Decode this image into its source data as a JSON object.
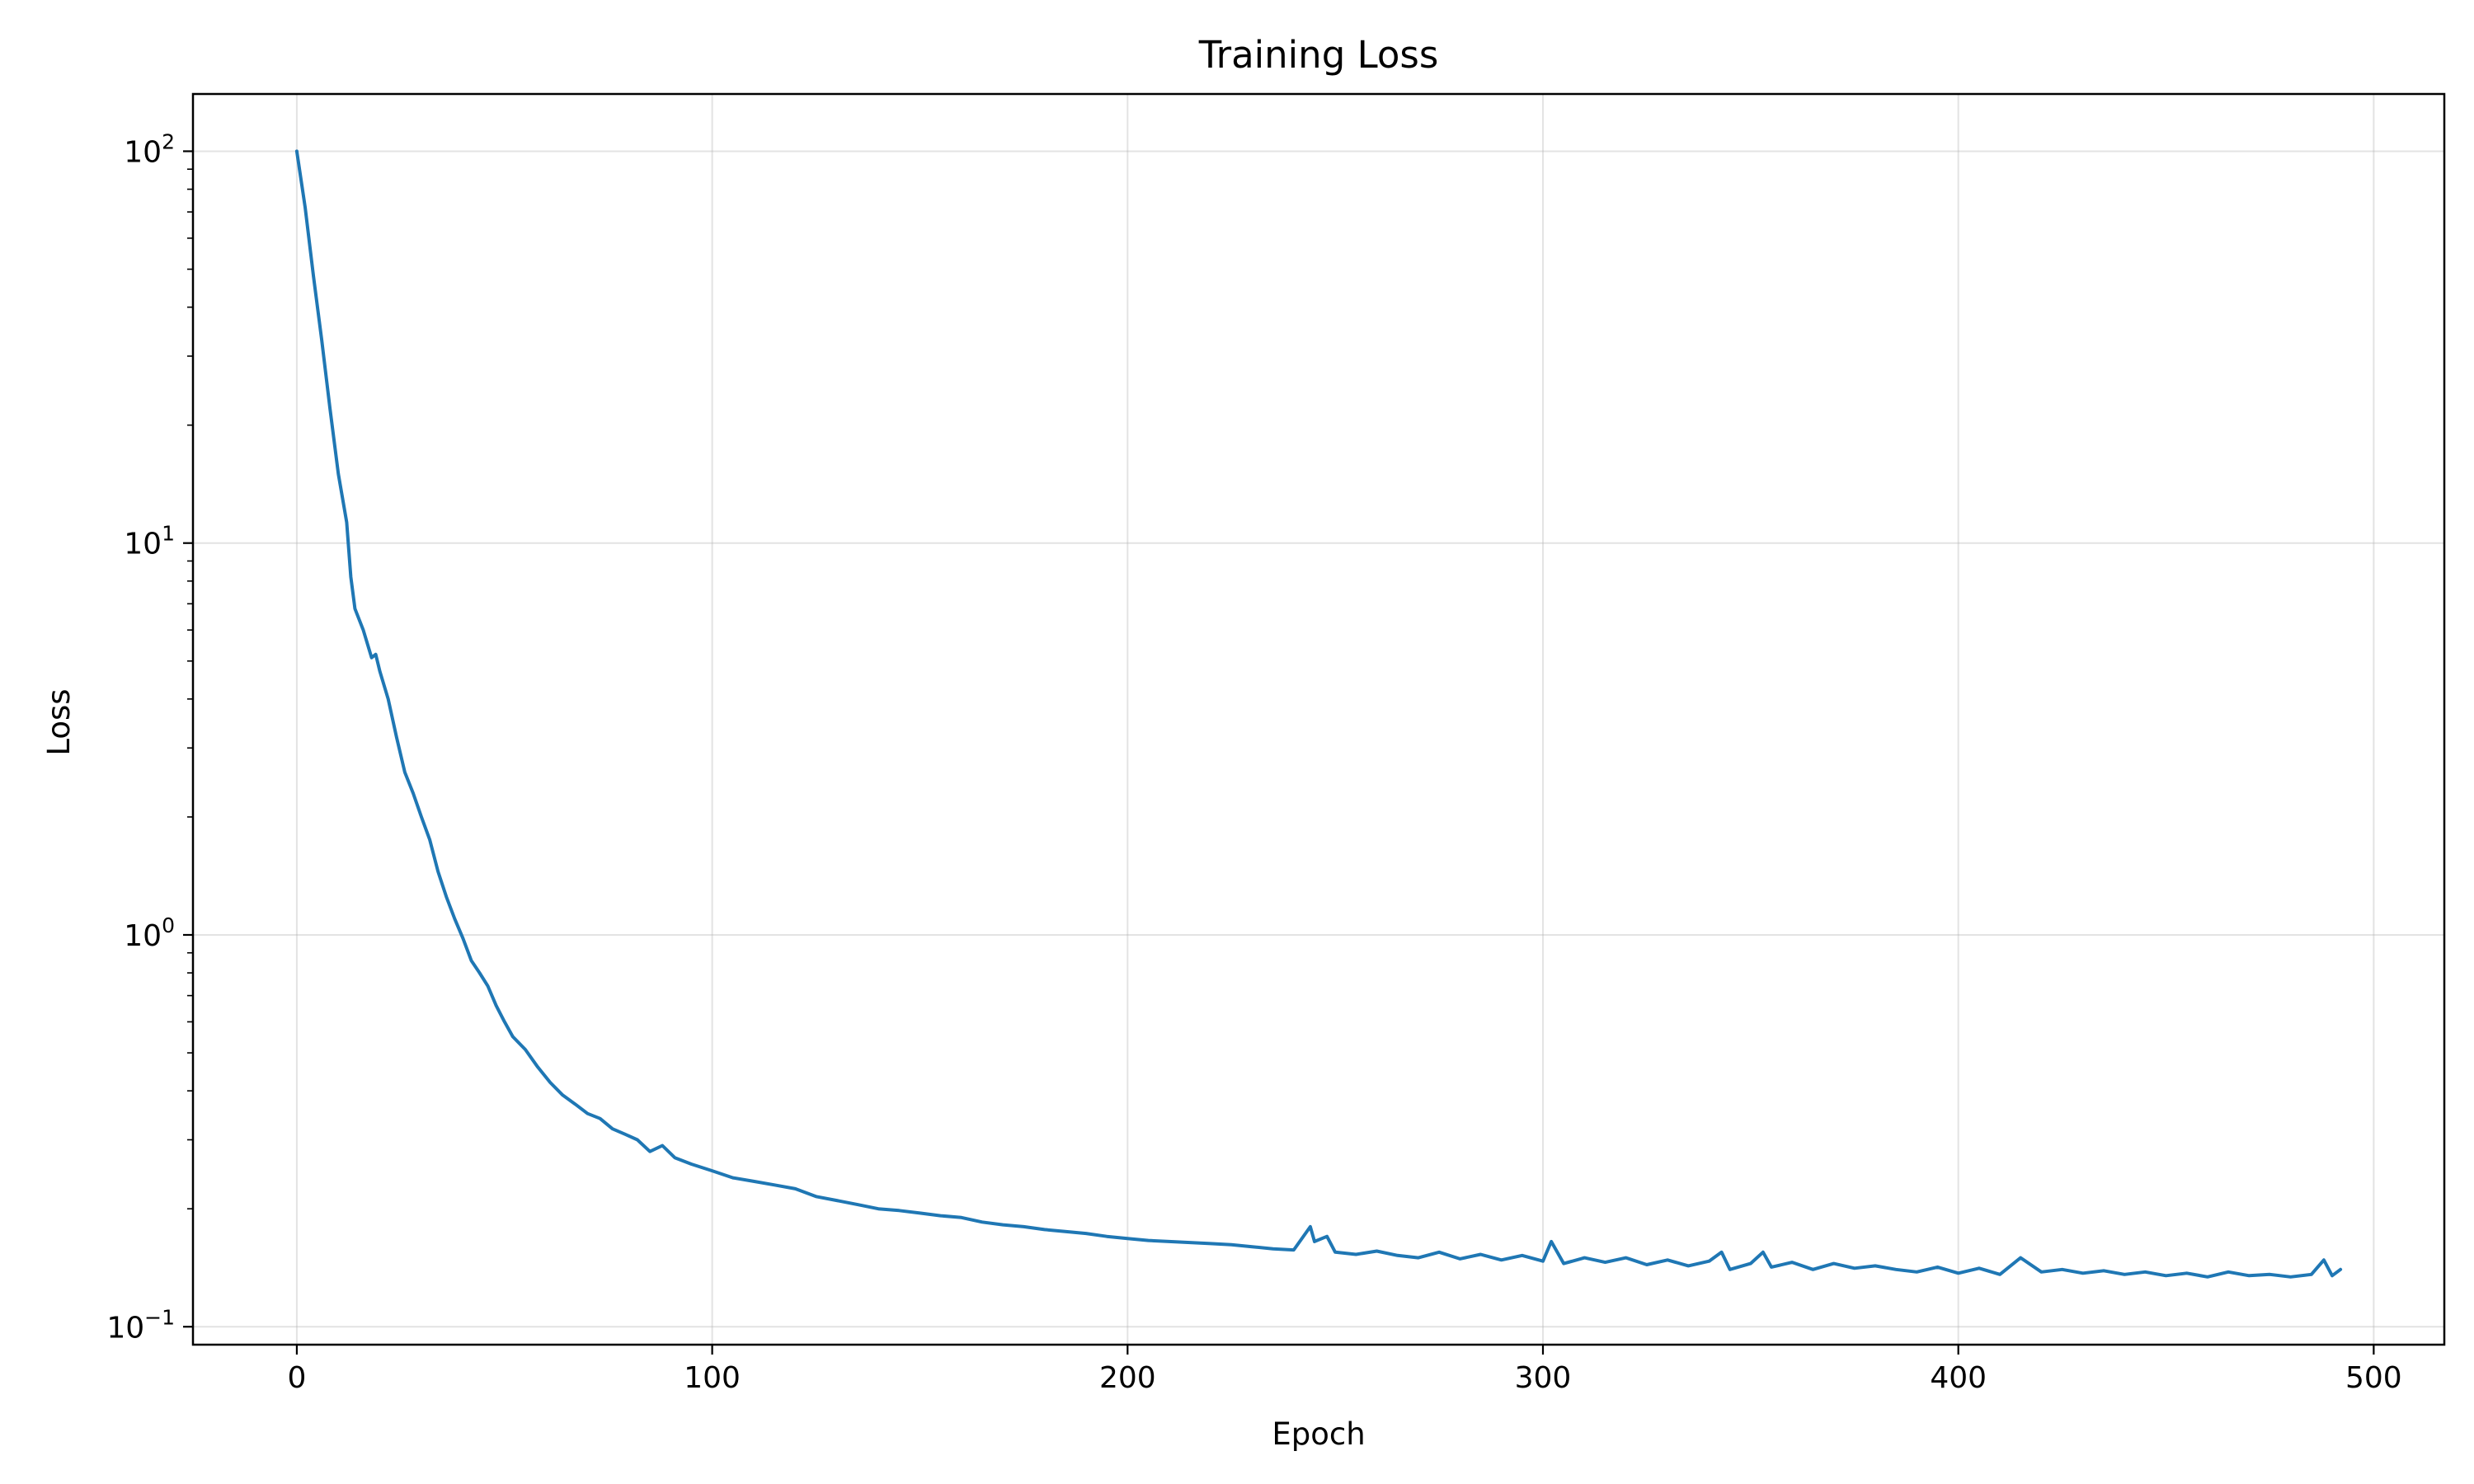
{
  "chart_data": {
    "type": "line",
    "title": "Training Loss",
    "xlabel": "Epoch",
    "ylabel": "Loss",
    "xlim": [
      -25,
      517
    ],
    "ylim": [
      0.09,
      140
    ],
    "yscale": "log",
    "grid": true,
    "line_color": "#1f77b4",
    "x_ticks": [
      {
        "value": 0,
        "label": "0"
      },
      {
        "value": 100,
        "label": "100"
      },
      {
        "value": 200,
        "label": "200"
      },
      {
        "value": 300,
        "label": "300"
      },
      {
        "value": 400,
        "label": "400"
      },
      {
        "value": 500,
        "label": "500"
      }
    ],
    "y_ticks": [
      {
        "value": 0.1,
        "base": "10",
        "exp": "−1"
      },
      {
        "value": 1,
        "base": "10",
        "exp": "0"
      },
      {
        "value": 10,
        "base": "10",
        "exp": "1"
      },
      {
        "value": 100,
        "base": "10",
        "exp": "2"
      }
    ],
    "series": [
      {
        "x": [
          0,
          2,
          4,
          6,
          8,
          10,
          12,
          13,
          14,
          16,
          18,
          19,
          20,
          22,
          24,
          26,
          28,
          30,
          32,
          34,
          36,
          38,
          40,
          42,
          44,
          46,
          48,
          50,
          52,
          55,
          58,
          61,
          64,
          67,
          70,
          73,
          76,
          79,
          82,
          85,
          88,
          91,
          95,
          100,
          105,
          110,
          115,
          120,
          125,
          130,
          135,
          140,
          145,
          150,
          155,
          160,
          165,
          170,
          175,
          180,
          185,
          190,
          195,
          200,
          205,
          210,
          215,
          220,
          225,
          230,
          235,
          240,
          244,
          245,
          248,
          250,
          255,
          260,
          265,
          270,
          275,
          280,
          285,
          290,
          295,
          300,
          302,
          305,
          310,
          315,
          320,
          325,
          330,
          335,
          340,
          343,
          345,
          350,
          353,
          355,
          360,
          365,
          370,
          375,
          380,
          385,
          390,
          395,
          400,
          405,
          410,
          415,
          420,
          425,
          430,
          435,
          440,
          445,
          450,
          455,
          460,
          465,
          470,
          475,
          480,
          485,
          488,
          490,
          492
        ],
        "y": [
          100,
          72,
          48,
          33,
          22,
          15,
          11.3,
          8.2,
          6.8,
          6.0,
          5.1,
          5.2,
          4.7,
          4.0,
          3.2,
          2.6,
          2.3,
          2.0,
          1.75,
          1.45,
          1.25,
          1.1,
          0.98,
          0.86,
          0.8,
          0.74,
          0.66,
          0.6,
          0.55,
          0.51,
          0.46,
          0.42,
          0.39,
          0.37,
          0.35,
          0.34,
          0.32,
          0.31,
          0.3,
          0.28,
          0.29,
          0.27,
          0.26,
          0.25,
          0.24,
          0.235,
          0.23,
          0.225,
          0.215,
          0.21,
          0.205,
          0.2,
          0.198,
          0.195,
          0.192,
          0.19,
          0.185,
          0.182,
          0.18,
          0.177,
          0.175,
          0.173,
          0.17,
          0.168,
          0.166,
          0.165,
          0.164,
          0.163,
          0.162,
          0.16,
          0.158,
          0.157,
          0.18,
          0.165,
          0.17,
          0.155,
          0.153,
          0.156,
          0.152,
          0.15,
          0.155,
          0.149,
          0.153,
          0.148,
          0.152,
          0.147,
          0.165,
          0.145,
          0.15,
          0.146,
          0.15,
          0.144,
          0.148,
          0.143,
          0.147,
          0.155,
          0.14,
          0.145,
          0.155,
          0.142,
          0.146,
          0.14,
          0.145,
          0.141,
          0.143,
          0.14,
          0.138,
          0.142,
          0.137,
          0.141,
          0.136,
          0.15,
          0.138,
          0.14,
          0.137,
          0.139,
          0.136,
          0.138,
          0.135,
          0.137,
          0.134,
          0.138,
          0.135,
          0.136,
          0.134,
          0.136,
          0.148,
          0.135,
          0.14
        ]
      }
    ]
  }
}
